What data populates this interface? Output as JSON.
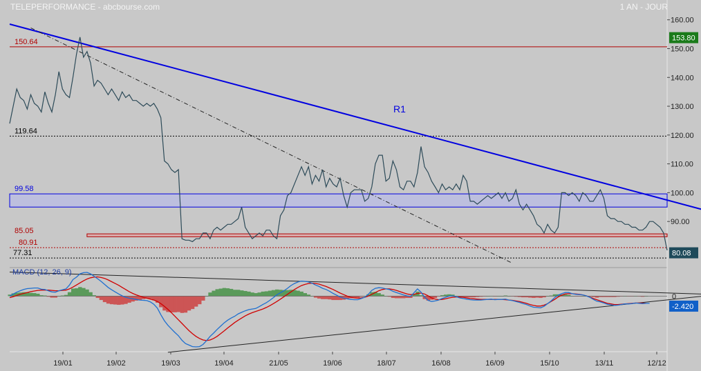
{
  "header": {
    "title": "TELEPERFORMANCE - abcbourse.com",
    "period": "1 AN - JOUR"
  },
  "colors": {
    "background": "#c8c8c8",
    "price_line": "#2c4a58",
    "resistance_blue": "#0000e0",
    "support_red": "#b00000",
    "macd_line": "#1e6fd0",
    "signal_line": "#d00000",
    "hist_positive": "#5a9a5a",
    "hist_negative": "#cc5555",
    "current_price_badge": "#1e4a5a",
    "ref_price_badge": "#1a7a1a",
    "macd_badge": "#1060c8"
  },
  "chart_data": [
    {
      "type": "line",
      "title": "TELEPERFORMANCE",
      "ylim": [
        74,
        164
      ],
      "yticks": [
        90,
        100,
        110,
        120,
        130,
        140,
        150,
        160
      ],
      "ytick_labels": [
        "90.00",
        "100.00",
        "110.00",
        "120.00",
        "130.00",
        "140.00",
        "150.00",
        "160.00"
      ],
      "xtick_labels": [
        "19/01",
        "19/02",
        "19/03",
        "19/04",
        "21/05",
        "19/06",
        "18/07",
        "16/08",
        "16/09",
        "15/10",
        "13/11",
        "12/12"
      ],
      "series": [
        {
          "values": [
            124,
            130,
            136,
            133,
            132,
            129,
            134,
            131,
            130,
            128,
            135,
            131,
            128,
            134,
            142,
            136,
            134,
            133,
            140,
            148,
            154,
            147,
            149,
            145,
            137,
            139,
            138,
            136,
            134,
            136,
            134,
            132,
            135,
            133,
            134,
            132,
            132,
            131,
            130,
            131,
            130,
            131,
            129,
            126,
            111,
            110,
            108,
            107,
            108,
            84,
            83.5,
            83.5,
            83,
            84,
            84,
            86,
            86,
            84,
            87,
            88,
            87,
            88,
            89,
            89,
            90,
            91,
            95,
            88,
            86,
            84,
            85,
            86,
            85,
            87,
            87,
            85,
            84,
            92,
            94,
            99,
            100,
            103,
            106,
            109,
            106,
            109,
            103,
            106,
            104,
            108,
            102,
            105,
            103,
            102,
            105,
            99,
            95,
            100,
            101,
            101,
            101,
            97,
            98,
            102,
            110,
            113,
            113,
            104,
            105,
            111,
            108,
            102,
            101,
            104,
            104,
            102,
            107,
            116,
            109,
            107,
            104,
            102,
            100,
            103,
            101,
            102,
            101,
            103,
            101,
            106,
            104,
            97,
            97,
            96,
            97,
            98,
            99,
            98,
            99,
            100,
            98,
            100,
            97,
            98,
            101,
            96,
            94,
            96,
            94,
            92,
            89,
            88,
            86,
            89,
            87,
            86,
            88,
            100,
            100,
            99,
            100,
            99,
            97,
            100,
            99,
            97,
            97,
            99,
            101,
            98,
            92,
            91,
            91,
            90,
            90,
            89,
            89,
            88,
            88,
            87,
            87,
            88,
            90,
            90,
            89,
            88,
            86,
            80
          ]
        }
      ],
      "annotations": {
        "resistance_label": "R1",
        "price_levels": [
          {
            "label": "150.64",
            "value": 150.64,
            "style": "solid",
            "color": "#b00000"
          },
          {
            "label": "119.64",
            "value": 119.64,
            "style": "dotted",
            "color": "#000000"
          },
          {
            "label": "99.58",
            "value": 99.58,
            "style": "band",
            "color": "#0000e0"
          },
          {
            "label": "85.05",
            "value": 85.05,
            "style": "band",
            "color": "#b00000"
          },
          {
            "label": "80.91",
            "value": 80.91,
            "style": "dotted",
            "color": "#b00000"
          },
          {
            "label": "77.31",
            "value": 77.31,
            "style": "dotted",
            "color": "#000000"
          }
        ],
        "band_99": [
          95,
          99.58
        ],
        "band_85": [
          84.7,
          85.7
        ],
        "trendlines": [
          {
            "name": "R1",
            "from": [
              0,
              158.5
            ],
            "to": [
              199,
              93.5
            ],
            "style": "solid"
          },
          {
            "name": "dashdot",
            "from": [
              6,
              157.2
            ],
            "to": [
              143,
              75.5
            ],
            "style": "dashdot"
          }
        ],
        "ref_price": "153.80",
        "last_price": "80.08"
      }
    },
    {
      "type": "line",
      "title": "MACD (12, 26, 9)",
      "ylim": [
        -18.5,
        9.5
      ],
      "ytick_labels": [
        "0"
      ],
      "last_value": "-2.420",
      "series": [
        {
          "name": "MACD",
          "values": [
            0,
            0.7,
            1.3,
            1.8,
            2.2,
            2.5,
            2.6,
            2.7,
            2.7,
            2.3,
            2.2,
            1.8,
            1.4,
            1.3,
            1.8,
            2.1,
            2.4,
            3.7,
            5.5,
            6.3,
            7.4,
            7.8,
            7.9,
            7.4,
            6.6,
            5.8,
            4.9,
            3.9,
            2.9,
            2.1,
            1.4,
            0.7,
            0.1,
            -0.4,
            -0.7,
            -0.9,
            -1.1,
            -1.3,
            -1.4,
            -1.5,
            -1.9,
            -2.7,
            -4.0,
            -6.2,
            -8.2,
            -9.7,
            -10.9,
            -12.1,
            -13.2,
            -14.7,
            -15.8,
            -16.3,
            -16.8,
            -16.9,
            -16.8,
            -16.1,
            -14.8,
            -13.4,
            -12.3,
            -11.1,
            -10.0,
            -8.9,
            -8.0,
            -7.3,
            -6.7,
            -5.9,
            -5.4,
            -4.9,
            -4.5,
            -4.3,
            -4.1,
            -3.5,
            -2.8,
            -2.2,
            -1.4,
            -0.5,
            0.4,
            1.1,
            1.8,
            2.6,
            3.5,
            4.2,
            4.7,
            5.0,
            4.9,
            4.7,
            4.3,
            3.7,
            3.2,
            2.6,
            2.2,
            1.6,
            0.9,
            0.3,
            -0.3,
            -0.7,
            -0.9,
            -1.1,
            -1.2,
            -1.2,
            -0.8,
            -0.4,
            0.6,
            1.9,
            2.6,
            2.8,
            2.7,
            2.4,
            2.2,
            1.6,
            1.2,
            0.8,
            0.4,
            0.1,
            -0.1,
            1.1,
            2.4,
            1.3,
            -0.3,
            -1.4,
            -1.8,
            -1.6,
            -1.3,
            -0.8,
            -0.4,
            0,
            0.1,
            -0.2,
            -0.6,
            -0.8,
            -1.0,
            -1.2,
            -1.3,
            -1.3,
            -1.3,
            -1.2,
            -1.1,
            -1.0,
            -1.2,
            -1.1,
            -1.1,
            -1.0,
            -1.3,
            -1.5,
            -1.8,
            -2.1,
            -2.5,
            -2.8,
            -3.3,
            -3.7,
            -3.8,
            -3.9,
            -3.4,
            -2.5,
            -1.6,
            -0.5,
            0.3,
            0.8,
            1.2,
            1.2,
            0.8,
            0.6,
            0.5,
            0.4,
            0.1,
            -0.4,
            -1.1,
            -1.7,
            -1.9,
            -2.3,
            -2.7,
            -2.9,
            -3.1,
            -3.0,
            -2.8,
            -2.6,
            -2.6,
            -2.5,
            -2.3,
            -2.4,
            -2.5,
            -2.4,
            -2.4
          ]
        },
        {
          "name": "Signal",
          "values": [
            -0.5,
            -0.2,
            0.2,
            0.6,
            0.9,
            1.2,
            1.5,
            1.7,
            1.9,
            2.0,
            2.0,
            2.0,
            1.9,
            1.8,
            1.8,
            1.9,
            2.0,
            2.4,
            3.0,
            3.7,
            4.4,
            5.1,
            5.7,
            6.1,
            6.3,
            6.4,
            6.2,
            5.9,
            5.4,
            4.8,
            4.2,
            3.6,
            2.9,
            2.2,
            1.5,
            0.9,
            0.4,
            0,
            -0.4,
            -0.7,
            -1.0,
            -1.3,
            -1.8,
            -2.5,
            -3.4,
            -4.4,
            -5.5,
            -6.7,
            -7.9,
            -9.1,
            -10.3,
            -11.5,
            -12.5,
            -13.4,
            -14.1,
            -14.6,
            -14.8,
            -14.6,
            -14.1,
            -13.4,
            -12.5,
            -11.6,
            -10.6,
            -9.7,
            -8.8,
            -8.0,
            -7.3,
            -6.6,
            -6.0,
            -5.5,
            -5.1,
            -4.7,
            -4.3,
            -3.8,
            -3.2,
            -2.5,
            -1.8,
            -1.0,
            -0.2,
            0.6,
            1.4,
            2.2,
            2.9,
            3.5,
            3.9,
            4.2,
            4.3,
            4.2,
            4.0,
            3.6,
            3.2,
            2.7,
            2.2,
            1.6,
            1.0,
            0.5,
            0,
            -0.4,
            -0.6,
            -0.7,
            -0.6,
            -0.4,
            0,
            0.6,
            1.2,
            1.8,
            2.2,
            2.4,
            2.4,
            2.2,
            1.9,
            1.5,
            1.1,
            0.7,
            0.5,
            0.6,
            0.9,
            1.0,
            0.7,
            0.1,
            -0.6,
            -1.0,
            -1.2,
            -1.1,
            -0.9,
            -0.6,
            -0.4,
            -0.3,
            -0.3,
            -0.4,
            -0.6,
            -0.8,
            -0.9,
            -1.0,
            -1.1,
            -1.1,
            -1.1,
            -1.1,
            -1.1,
            -1.1,
            -1.1,
            -1.2,
            -1.3,
            -1.4,
            -1.6,
            -1.8,
            -2.1,
            -2.4,
            -2.8,
            -3.1,
            -3.3,
            -3.3,
            -3.0,
            -2.5,
            -1.8,
            -1.1,
            -0.3,
            0.3,
            0.7,
            0.8,
            0.8,
            0.7,
            0.6,
            0.4,
            0.1,
            -0.3,
            -0.8,
            -1.2,
            -1.6,
            -2.0,
            -2.4,
            -2.6,
            -2.8,
            -2.8,
            -2.7,
            -2.6,
            -2.5,
            -2.4,
            -2.3,
            -2.3,
            -2.3,
            -2.4
          ]
        }
      ],
      "trendlines": [
        {
          "from": [
            0,
            8
          ],
          "to": [
            199,
            0.6
          ]
        },
        {
          "from": [
            45,
            -18.7
          ],
          "to": [
            199,
            0.2
          ]
        }
      ]
    }
  ]
}
